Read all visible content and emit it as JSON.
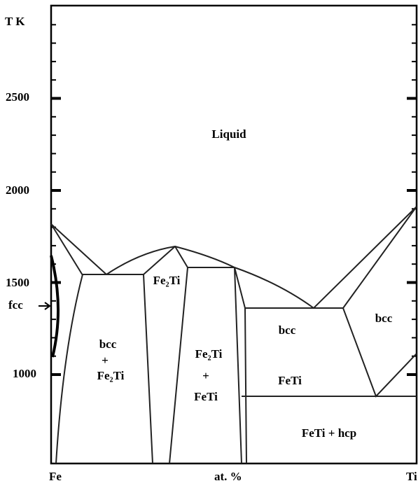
{
  "axis": {
    "label": "T K",
    "ticks": [
      "2500",
      "2000",
      "1500",
      "1000"
    ],
    "fcc": "fcc",
    "left": "Fe",
    "middle": "at. %",
    "right": "Ti"
  },
  "regions": {
    "liquid": "Liquid",
    "fe2ti": "Fe₂Ti",
    "bcc_left": "bcc",
    "plus_left": "+",
    "fe2ti_left": "Fe₂Ti",
    "fe2ti_mid": "Fe₂Ti",
    "plus_mid": "+",
    "feti_mid": "FeTi",
    "bcc_mid": "bcc",
    "feti": "FeTi",
    "bcc_right": "bcc",
    "feti_hcp": "FeTi  + hcp"
  }
}
